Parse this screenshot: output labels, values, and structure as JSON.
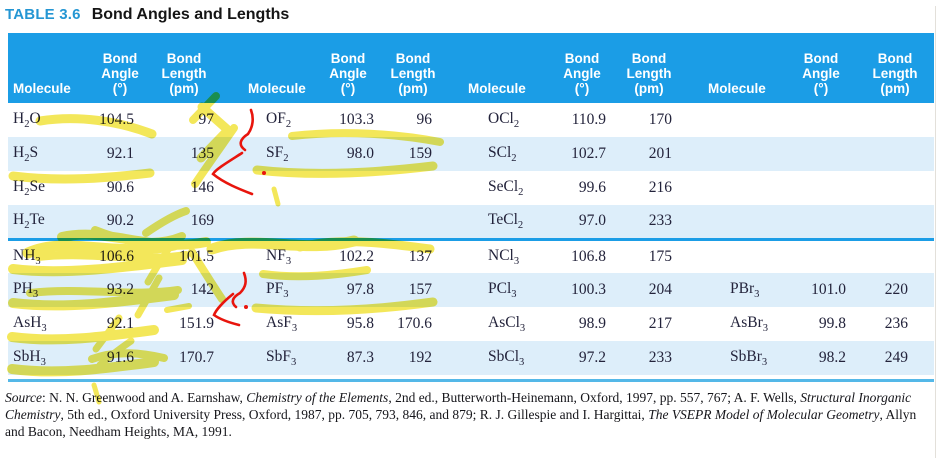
{
  "title": {
    "label": "TABLE 3.6",
    "text": "Bond Angles and Lengths"
  },
  "table": {
    "header": {
      "molecule": "Molecule",
      "angle_lines": [
        "Bond",
        "Angle",
        "(°)"
      ],
      "length_lines": [
        "Bond",
        "Length",
        "(pm)"
      ]
    },
    "rows": [
      [
        [
          "H2O",
          "104.5",
          "97"
        ],
        [
          "OF2",
          "103.3",
          "96"
        ],
        [
          "OCl2",
          "110.9",
          "170"
        ],
        null
      ],
      [
        [
          "H2S",
          "92.1",
          "135"
        ],
        [
          "SF2",
          "98.0",
          "159"
        ],
        [
          "SCl2",
          "102.7",
          "201"
        ],
        null
      ],
      [
        [
          "H2Se",
          "90.6",
          "146"
        ],
        null,
        [
          "SeCl2",
          "99.6",
          "216"
        ],
        null
      ],
      [
        [
          "H2Te",
          "90.2",
          "169"
        ],
        null,
        [
          "TeCl2",
          "97.0",
          "233"
        ],
        null
      ],
      [
        [
          "NH3",
          "106.6",
          "101.5"
        ],
        [
          "NF3",
          "102.2",
          "137"
        ],
        [
          "NCl3",
          "106.8",
          "175"
        ],
        null
      ],
      [
        [
          "PH3",
          "93.2",
          "142"
        ],
        [
          "PF3",
          "97.8",
          "157"
        ],
        [
          "PCl3",
          "100.3",
          "204"
        ],
        [
          "PBr3",
          "101.0",
          "220"
        ]
      ],
      [
        [
          "AsH3",
          "92.1",
          "151.9"
        ],
        [
          "AsF3",
          "95.8",
          "170.6"
        ],
        [
          "AsCl3",
          "98.9",
          "217"
        ],
        [
          "AsBr3",
          "99.8",
          "236"
        ]
      ],
      [
        [
          "SbH3",
          "91.6",
          "170.7"
        ],
        [
          "SbF3",
          "87.3",
          "192"
        ],
        [
          "SbCl3",
          "97.2",
          "233"
        ],
        [
          "SbBr3",
          "98.2",
          "249"
        ]
      ]
    ]
  },
  "source": {
    "segments": [
      {
        "text": "Source",
        "italic": true
      },
      {
        "text": ": N. N. Greenwood and A. Earnshaw, ",
        "italic": false
      },
      {
        "text": "Chemistry of the Elements",
        "italic": true
      },
      {
        "text": ", 2nd ed., Butterworth-Heinemann, Oxford, 1997, pp. 557, 767; A. F. Wells, ",
        "italic": false
      },
      {
        "text": "Structural Inorganic Chemistry",
        "italic": true
      },
      {
        "text": ", 5th ed., Oxford University Press, Oxford, 1987, pp. 705, 793, 846, and 879; R. J. Gillespie and I. Hargittai, ",
        "italic": false
      },
      {
        "text": "The VSEPR Model of Molecular Geometry",
        "italic": true
      },
      {
        "text": ", Allyn and Bacon, Needham Heights, MA, 1991.",
        "italic": false
      }
    ]
  },
  "colors": {
    "header_blue": "#1b9de6",
    "stripe_blue": "#ddeefa",
    "title_blue": "#2496d3",
    "rule_blue": "#54b8e8",
    "text_dark": "#23233b",
    "highlighter_yellow": "#f0e130",
    "pen_red": "#e8150d"
  },
  "annotations": {
    "highlighter_note": "yellow highlighter scribbles over rows and divider",
    "pen_note": "red handwritten question marks beside bond length columns"
  }
}
